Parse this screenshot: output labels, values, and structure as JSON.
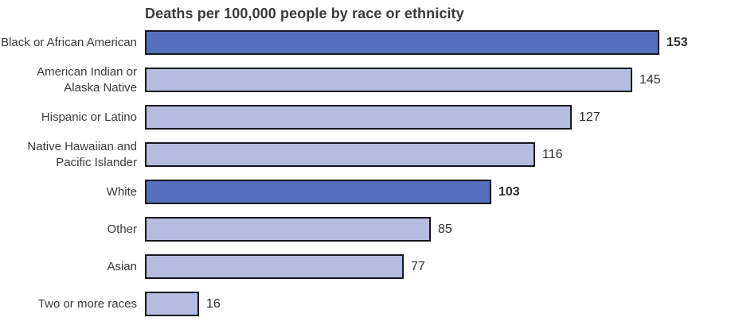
{
  "chart_data": {
    "type": "bar",
    "orientation": "horizontal",
    "title": "Deaths per 100,000 people by race or ethnicity",
    "xlabel": "",
    "ylabel": "",
    "categories": [
      "Black or African American",
      "American Indian or Alaska Native",
      "Hispanic or Latino",
      "Native Hawaiian and Pacific Islander",
      "White",
      "Other",
      "Asian",
      "Two or more races"
    ],
    "values": [
      153,
      145,
      127,
      116,
      103,
      85,
      77,
      16
    ],
    "emphasized": [
      true,
      false,
      false,
      false,
      true,
      false,
      false,
      false
    ],
    "value_labels_shown": true,
    "xlim": [
      0,
      160
    ],
    "grid": false,
    "legend": false,
    "colors": {
      "emphasis_bar": "#5470bc",
      "default_bar": "#b5bcdf",
      "bar_border": "#15161d",
      "title_text": "#3a3a3a",
      "label_text": "#3a3a3a",
      "value_text": "#2e2e2e"
    }
  }
}
